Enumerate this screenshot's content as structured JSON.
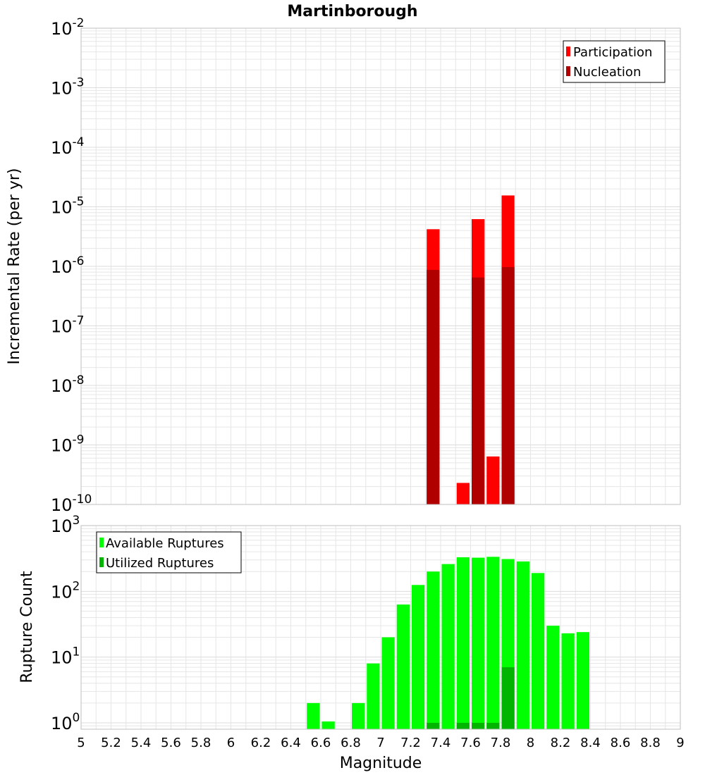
{
  "title": "Martinborough",
  "colors": {
    "participation": "#ff0000",
    "nucleation": "#b00000",
    "available": "#00ff00",
    "utilized": "#00b400",
    "grid": "#e6e6e6",
    "frame": "#bfbfbf"
  },
  "chart_data": [
    {
      "type": "bar",
      "title": "Martinborough",
      "xlabel": "",
      "ylabel": "Incremental Rate (per yr)",
      "yscale": "log",
      "ylim": [
        1e-10,
        0.01
      ],
      "xlim": [
        5,
        9
      ],
      "y_ticks": [
        {
          "base": "10",
          "exp": "-2"
        },
        {
          "base": "10",
          "exp": "-3"
        },
        {
          "base": "10",
          "exp": "-4"
        },
        {
          "base": "10",
          "exp": "-5"
        },
        {
          "base": "10",
          "exp": "-6"
        },
        {
          "base": "10",
          "exp": "-7"
        },
        {
          "base": "10",
          "exp": "-8"
        },
        {
          "base": "10",
          "exp": "-9"
        },
        {
          "base": "10",
          "exp": "-10"
        }
      ],
      "legend": {
        "position": "top-right",
        "entries": [
          "Participation",
          "Nucleation"
        ]
      },
      "grid": true,
      "series": [
        {
          "name": "Participation",
          "color": "#ff0000",
          "points": [
            {
              "x": 7.35,
              "y": 4.2e-06
            },
            {
              "x": 7.55,
              "y": 2.3e-10
            },
            {
              "x": 7.65,
              "y": 6.2e-06
            },
            {
              "x": 7.75,
              "y": 6.4e-10
            },
            {
              "x": 7.85,
              "y": 1.55e-05
            }
          ]
        },
        {
          "name": "Nucleation",
          "color": "#b00000",
          "points": [
            {
              "x": 7.35,
              "y": 8.7e-07
            },
            {
              "x": 7.65,
              "y": 6.5e-07
            },
            {
              "x": 7.85,
              "y": 9.7e-07
            }
          ]
        }
      ]
    },
    {
      "type": "bar",
      "title": "",
      "xlabel": "Magnitude",
      "ylabel": "Rupture Count",
      "yscale": "log",
      "ylim": [
        0.8,
        1000
      ],
      "xlim": [
        5,
        9
      ],
      "x_ticks": [
        "5",
        "5.2",
        "5.4",
        "5.6",
        "5.8",
        "6",
        "6.2",
        "6.4",
        "6.6",
        "6.8",
        "7",
        "7.2",
        "7.4",
        "7.6",
        "7.8",
        "8",
        "8.2",
        "8.4",
        "8.6",
        "8.8",
        "9"
      ],
      "y_ticks": [
        {
          "base": "10",
          "exp": "3"
        },
        {
          "base": "10",
          "exp": "2"
        },
        {
          "base": "10",
          "exp": "1"
        },
        {
          "base": "10",
          "exp": "0"
        }
      ],
      "legend": {
        "position": "top-left",
        "entries": [
          "Available Ruptures",
          "Utilized Ruptures"
        ]
      },
      "grid": true,
      "series": [
        {
          "name": "Available Ruptures",
          "color": "#00ff00",
          "points": [
            {
              "x": 6.55,
              "y": 2
            },
            {
              "x": 6.65,
              "y": 1.05
            },
            {
              "x": 6.85,
              "y": 2
            },
            {
              "x": 6.95,
              "y": 8
            },
            {
              "x": 7.05,
              "y": 20
            },
            {
              "x": 7.15,
              "y": 63
            },
            {
              "x": 7.25,
              "y": 125
            },
            {
              "x": 7.35,
              "y": 200
            },
            {
              "x": 7.45,
              "y": 260
            },
            {
              "x": 7.55,
              "y": 330
            },
            {
              "x": 7.65,
              "y": 325
            },
            {
              "x": 7.75,
              "y": 335
            },
            {
              "x": 7.85,
              "y": 310
            },
            {
              "x": 7.95,
              "y": 285
            },
            {
              "x": 8.05,
              "y": 190
            },
            {
              "x": 8.15,
              "y": 30
            },
            {
              "x": 8.25,
              "y": 23
            },
            {
              "x": 8.35,
              "y": 24
            }
          ]
        },
        {
          "name": "Utilized Ruptures",
          "color": "#00b400",
          "points": [
            {
              "x": 7.35,
              "y": 1
            },
            {
              "x": 7.55,
              "y": 1
            },
            {
              "x": 7.65,
              "y": 1
            },
            {
              "x": 7.75,
              "y": 1
            },
            {
              "x": 7.85,
              "y": 7
            }
          ]
        }
      ]
    }
  ]
}
